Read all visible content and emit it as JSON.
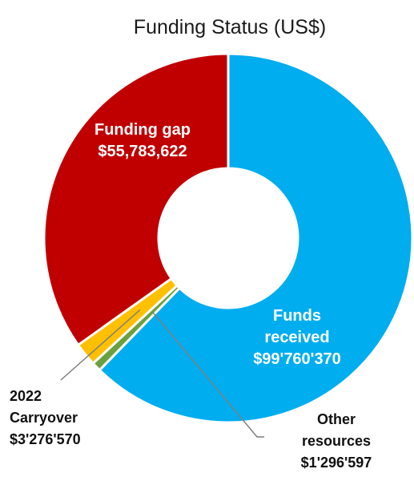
{
  "chart_data": {
    "type": "pie",
    "variant": "donut",
    "title": "Funding Status (US$)",
    "slices": [
      {
        "name": "Funds received",
        "value": 99760370,
        "label_lines": [
          "Funds",
          "received",
          "$99'760'370"
        ],
        "color": "#00adef",
        "label_position": "inside"
      },
      {
        "name": "Other resources",
        "value": 1296597,
        "label_lines": [
          "Other",
          "resources",
          "$1'296'597"
        ],
        "color": "#6aa13f",
        "label_position": "outside-bottom-right"
      },
      {
        "name": "2022 Carryover",
        "value": 3276570,
        "label_lines": [
          "2022",
          "Carryover",
          "$3'276'570"
        ],
        "color": "#ffc000",
        "label_position": "outside-bottom-left"
      },
      {
        "name": "Funding gap",
        "value": 55783622,
        "label_lines": [
          "Funding gap",
          "$55,783,622"
        ],
        "color": "#c00000",
        "label_position": "inside"
      }
    ],
    "start_angle_deg": 0,
    "direction": "clockwise",
    "slice_border_color": "#ffffff",
    "legend": "none"
  }
}
